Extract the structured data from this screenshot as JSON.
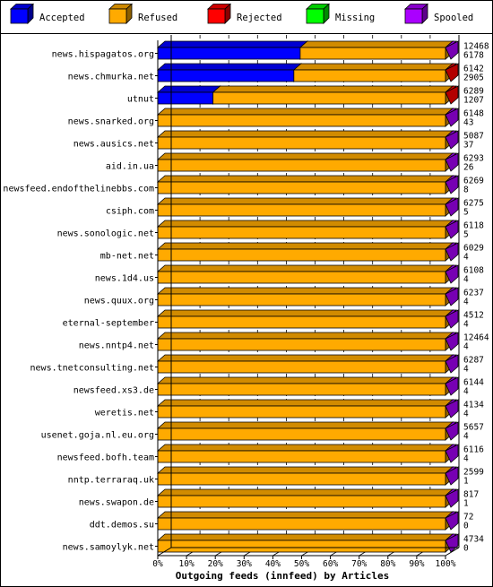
{
  "chart_data": {
    "type": "bar",
    "orientation": "horizontal",
    "stacked": true,
    "style": "3d",
    "title": "",
    "xlabel": "Outgoing feeds (innfeed) by Articles",
    "ylabel": "",
    "xlim": [
      0,
      100
    ],
    "x_unit": "%",
    "ticks": [
      "0%",
      "10%",
      "20%",
      "30%",
      "40%",
      "50%",
      "60%",
      "70%",
      "80%",
      "90%",
      "100%"
    ],
    "legend_position": "top",
    "grid": "vertical-dashed",
    "legend": [
      {
        "name": "Accepted",
        "color": "#0000ff"
      },
      {
        "name": "Refused",
        "color": "#ffaa00"
      },
      {
        "name": "Rejected",
        "color": "#ff0000"
      },
      {
        "name": "Missing",
        "color": "#00ff00"
      },
      {
        "name": "Spooled",
        "color": "#aa00ff"
      }
    ],
    "rows": [
      {
        "label": "news.hispagatos.org",
        "total": "12468",
        "second": "6178",
        "accepted_pct": 49.5,
        "refused_pct": 50.5,
        "rejected_pct": 0,
        "missing_pct": 0
      },
      {
        "label": "news.chmurka.net",
        "total": "6142",
        "second": "2905",
        "accepted_pct": 47.3,
        "refused_pct": 52.7,
        "rejected_pct": 4.5,
        "missing_pct": 0
      },
      {
        "label": "utnut",
        "total": "6289",
        "second": "1207",
        "accepted_pct": 19.2,
        "refused_pct": 80.8,
        "rejected_pct": 5,
        "missing_pct": 0
      },
      {
        "label": "news.snarked.org",
        "total": "6148",
        "second": "43",
        "accepted_pct": 0,
        "refused_pct": 100,
        "rejected_pct": 0,
        "missing_pct": 0
      },
      {
        "label": "news.ausics.net",
        "total": "5087",
        "second": "37",
        "accepted_pct": 0,
        "refused_pct": 100,
        "rejected_pct": 0,
        "missing_pct": 0
      },
      {
        "label": "aid.in.ua",
        "total": "6293",
        "second": "26",
        "accepted_pct": 0,
        "refused_pct": 100,
        "rejected_pct": 0,
        "missing_pct": 0
      },
      {
        "label": "newsfeed.endofthelinebbs.com",
        "total": "6269",
        "second": "8",
        "accepted_pct": 0,
        "refused_pct": 100,
        "rejected_pct": 0,
        "missing_pct": 0
      },
      {
        "label": "csiph.com",
        "total": "6275",
        "second": "5",
        "accepted_pct": 0,
        "refused_pct": 100,
        "rejected_pct": 0,
        "missing_pct": 0
      },
      {
        "label": "news.sonologic.net",
        "total": "6118",
        "second": "5",
        "accepted_pct": 0,
        "refused_pct": 100,
        "rejected_pct": 0,
        "missing_pct": 0
      },
      {
        "label": "mb-net.net",
        "total": "6029",
        "second": "4",
        "accepted_pct": 0,
        "refused_pct": 100,
        "rejected_pct": 0,
        "missing_pct": 0
      },
      {
        "label": "news.1d4.us",
        "total": "6108",
        "second": "4",
        "accepted_pct": 0,
        "refused_pct": 100,
        "rejected_pct": 0,
        "missing_pct": 0
      },
      {
        "label": "news.quux.org",
        "total": "6237",
        "second": "4",
        "accepted_pct": 0,
        "refused_pct": 100,
        "rejected_pct": 0,
        "missing_pct": 0
      },
      {
        "label": "eternal-september",
        "total": "4512",
        "second": "4",
        "accepted_pct": 0,
        "refused_pct": 100,
        "rejected_pct": 0,
        "missing_pct": 0
      },
      {
        "label": "news.nntp4.net",
        "total": "12464",
        "second": "4",
        "accepted_pct": 0,
        "refused_pct": 100,
        "rejected_pct": 0,
        "missing_pct": 0
      },
      {
        "label": "news.tnetconsulting.net",
        "total": "6287",
        "second": "4",
        "accepted_pct": 0,
        "refused_pct": 100,
        "rejected_pct": 0,
        "missing_pct": 0
      },
      {
        "label": "newsfeed.xs3.de",
        "total": "6144",
        "second": "4",
        "accepted_pct": 0,
        "refused_pct": 100,
        "rejected_pct": 0,
        "missing_pct": 0
      },
      {
        "label": "weretis.net",
        "total": "4134",
        "second": "4",
        "accepted_pct": 0,
        "refused_pct": 100,
        "rejected_pct": 0,
        "missing_pct": 0
      },
      {
        "label": "usenet.goja.nl.eu.org",
        "total": "5657",
        "second": "4",
        "accepted_pct": 0,
        "refused_pct": 100,
        "rejected_pct": 0,
        "missing_pct": 0
      },
      {
        "label": "newsfeed.bofh.team",
        "total": "6116",
        "second": "4",
        "accepted_pct": 0,
        "refused_pct": 100,
        "rejected_pct": 0,
        "missing_pct": 0
      },
      {
        "label": "nntp.terraraq.uk",
        "total": "2599",
        "second": "1",
        "accepted_pct": 0,
        "refused_pct": 100,
        "rejected_pct": 0,
        "missing_pct": 0
      },
      {
        "label": "news.swapon.de",
        "total": "817",
        "second": "1",
        "accepted_pct": 0,
        "refused_pct": 100,
        "rejected_pct": 0,
        "missing_pct": 0
      },
      {
        "label": "ddt.demos.su",
        "total": "72",
        "second": "0",
        "accepted_pct": 0,
        "refused_pct": 100,
        "rejected_pct": 0,
        "missing_pct": 0
      },
      {
        "label": "news.samoylyk.net",
        "total": "4734",
        "second": "0",
        "accepted_pct": 0,
        "refused_pct": 100,
        "rejected_pct": 0,
        "missing_pct": 0
      }
    ]
  }
}
